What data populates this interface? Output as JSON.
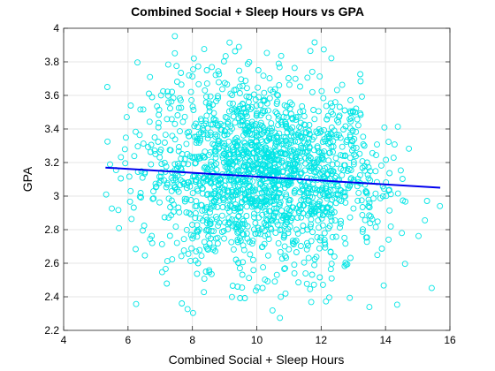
{
  "chart_data": {
    "type": "scatter",
    "title": "Combined Social + Sleep Hours vs GPA",
    "xlabel": "Combined Social + Sleep Hours",
    "ylabel": "GPA",
    "xlim": [
      4,
      16
    ],
    "ylim": [
      2.2,
      4
    ],
    "xticks": [
      "4",
      "6",
      "8",
      "10",
      "12",
      "14",
      "16"
    ],
    "yticks": [
      "2.2",
      "2.4",
      "2.6",
      "2.8",
      "3",
      "3.2",
      "3.4",
      "3.6",
      "3.8",
      "4"
    ],
    "grid": true,
    "colors": {
      "points": "#00e5e5",
      "fit": "#0000ee"
    },
    "series": [
      {
        "kind": "scatter",
        "marker": "open-circle",
        "x_mean": 10.2,
        "x_std": 1.85,
        "x_range": [
          5.3,
          15.8
        ],
        "y_mean": 3.12,
        "y_std": 0.28,
        "y_range": [
          2.2,
          4.0
        ],
        "approx_count": 1800
      },
      {
        "kind": "line",
        "x": [
          5.3,
          15.7
        ],
        "y": [
          3.17,
          3.05
        ]
      }
    ]
  }
}
